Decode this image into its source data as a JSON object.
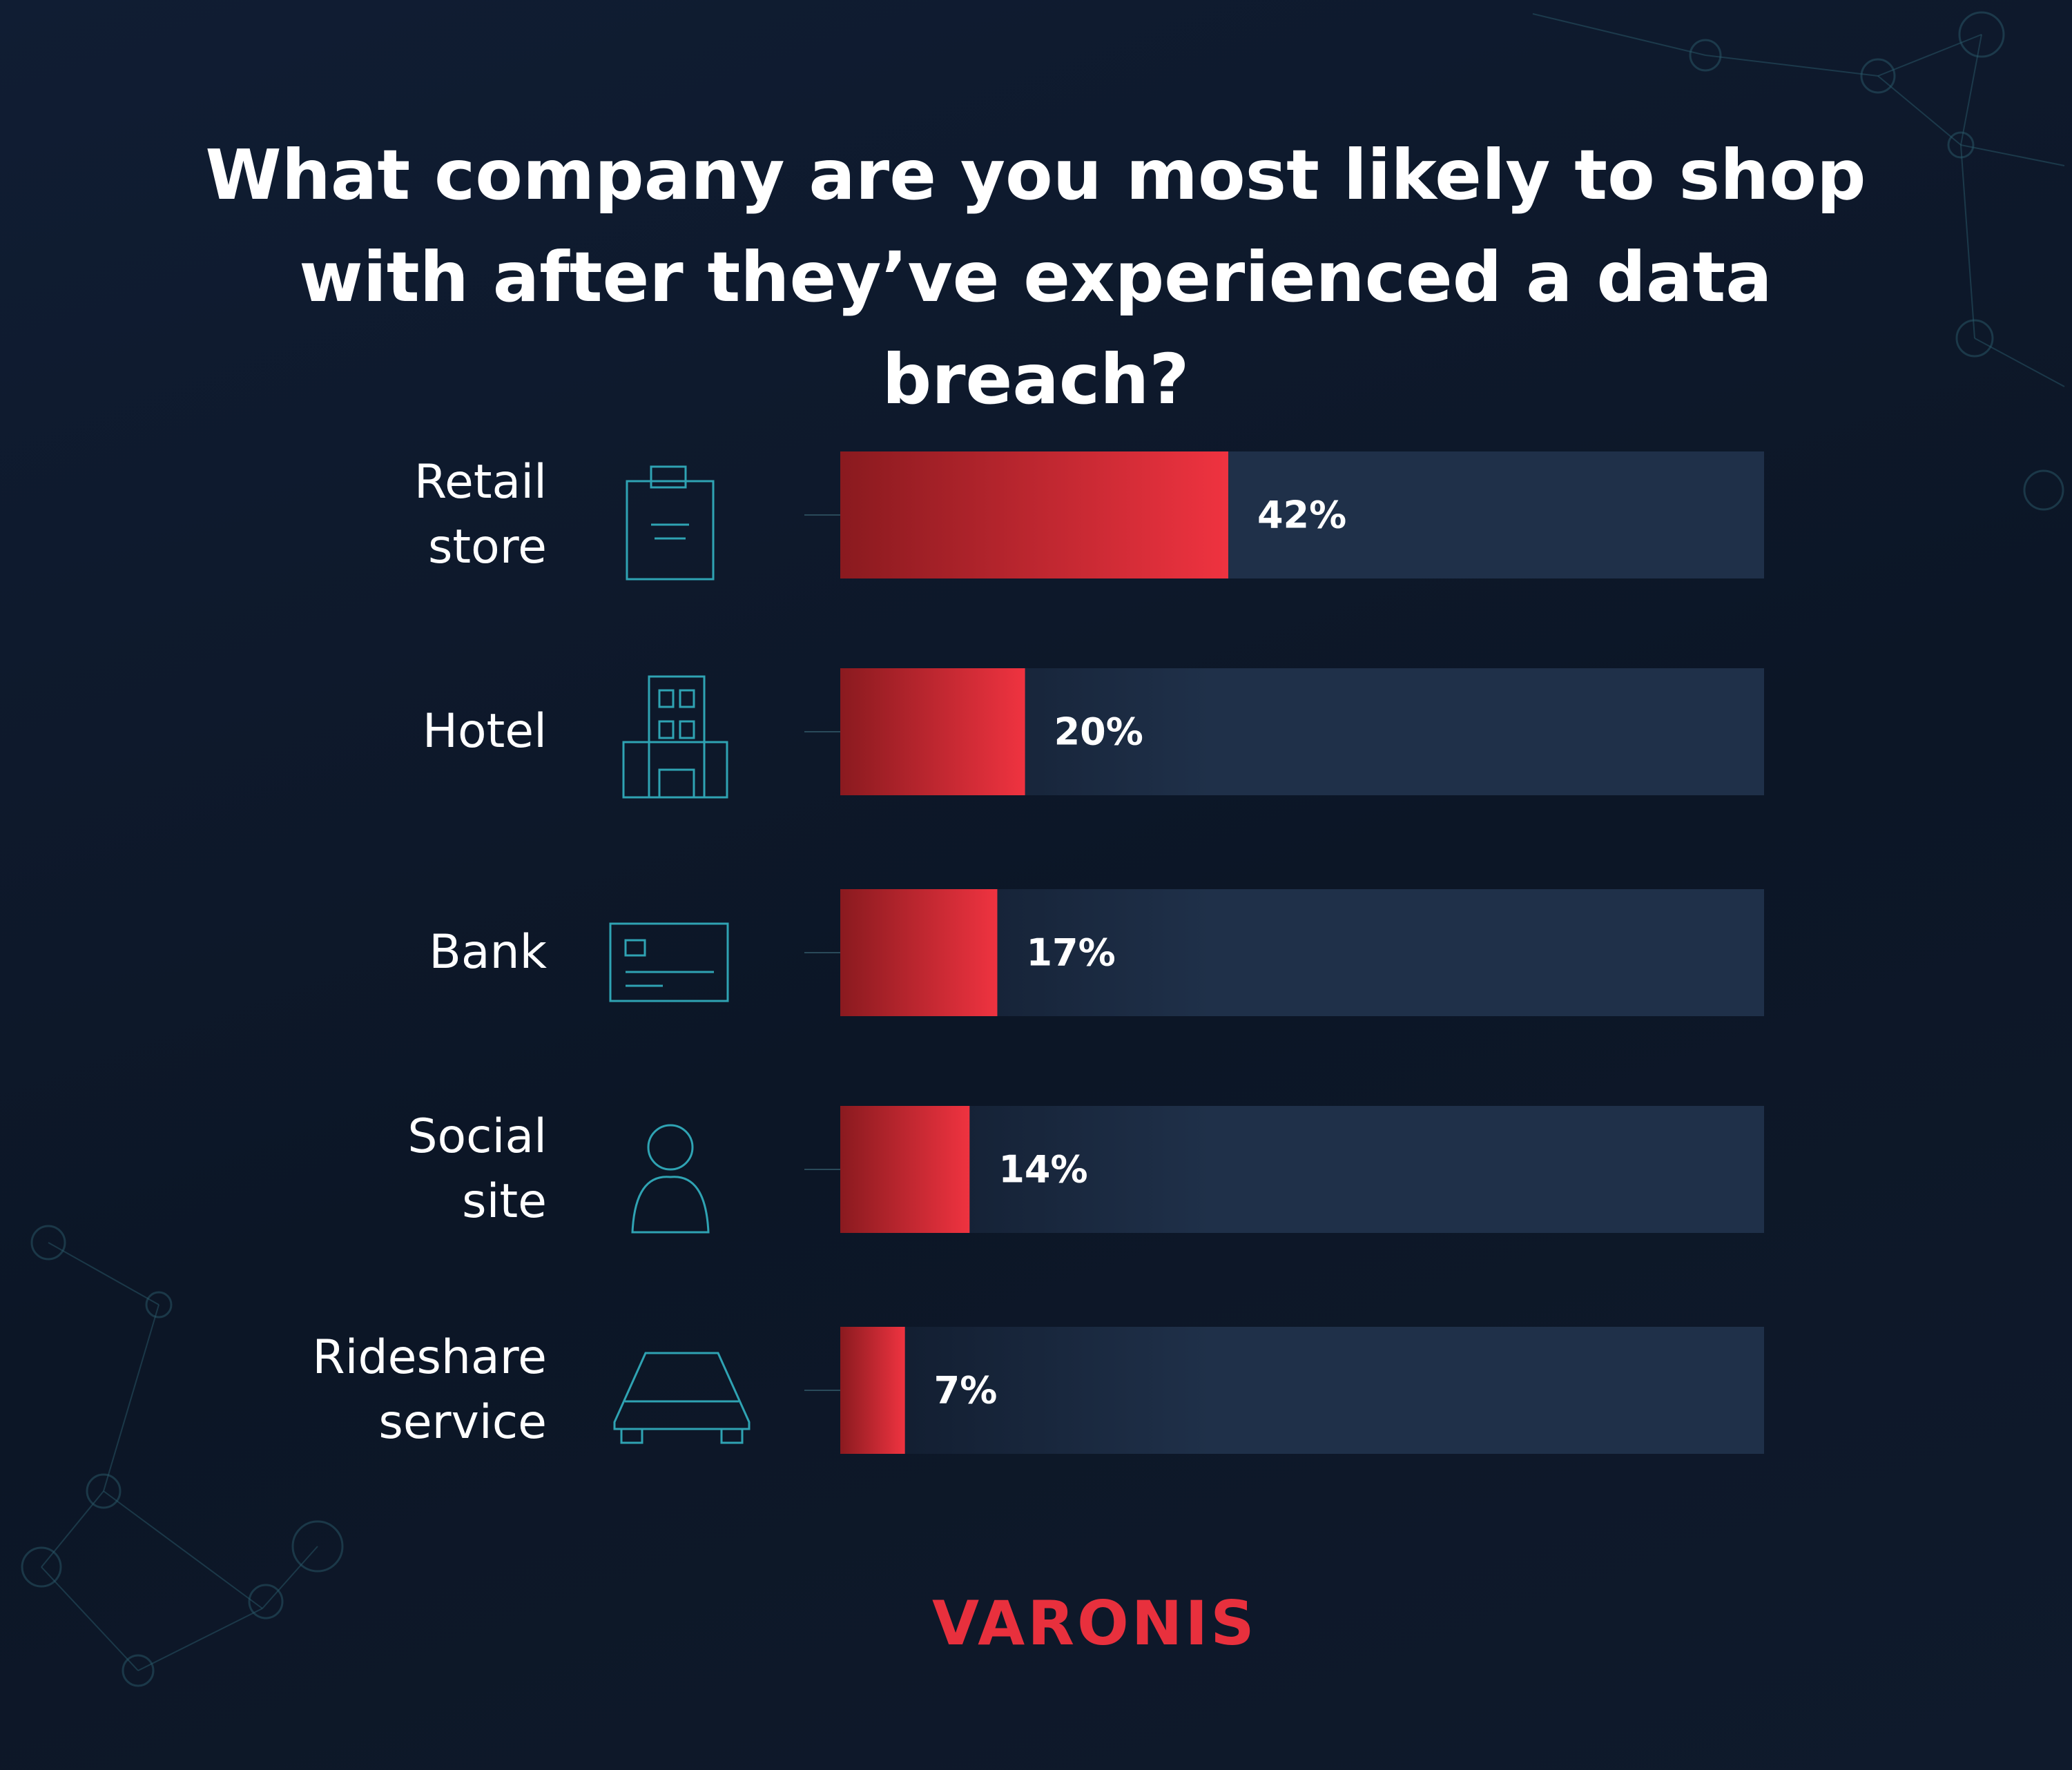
{
  "chart_data": {
    "type": "bar",
    "orientation": "horizontal",
    "title": "What company are you most likely to shop with after they’ve experienced a data breach?",
    "categories": [
      "Retail store",
      "Hotel",
      "Bank",
      "Social site",
      "Rideshare service"
    ],
    "values": [
      42,
      20,
      17,
      14,
      7
    ],
    "value_labels": [
      "42%",
      "20%",
      "17%",
      "14%",
      "7%"
    ],
    "color": "#ef3340",
    "xlim": [
      0,
      100
    ]
  },
  "logo": "VARONIS"
}
